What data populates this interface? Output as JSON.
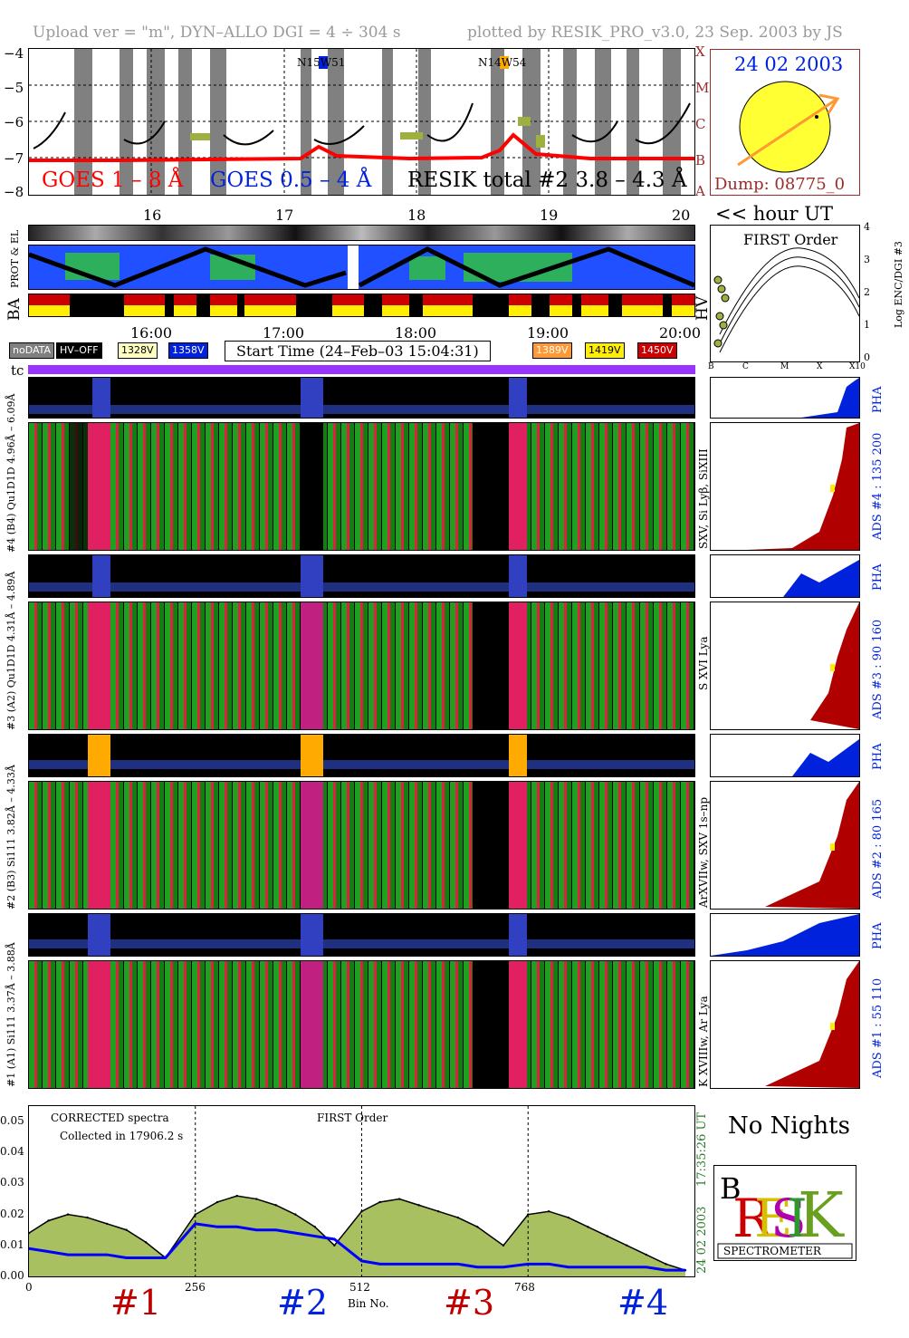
{
  "header": {
    "left": "Upload ver = \"m\", DYN–ALLO DGI =   4 ÷ 304 s",
    "right": "plotted by RESIK_PRO_v3.0, 23 Sep. 2003 by JS"
  },
  "goes": {
    "yticks": [
      "−4",
      "−5",
      "−6",
      "−7",
      "−8"
    ],
    "class_letters": [
      "X",
      "M",
      "C",
      "B",
      "A"
    ],
    "label_long": "GOES 1 – 8 Å",
    "label_short": "GOES 0.5 – 4 Å",
    "label_resik": "RESIK total #2  3.8 – 4.3 Å",
    "ar1": "N15W51",
    "ar2": "N14W54",
    "hour_ticks": [
      "16",
      "17",
      "18",
      "19",
      "20"
    ],
    "hour_label": "<< hour UT"
  },
  "sun": {
    "date": "24 02 2003",
    "dump": "Dump: 08775_0"
  },
  "orbit": {
    "label_prot": "PROT & EL",
    "label_ba": "BA",
    "label_hv": "HV",
    "time_ticks": [
      "16:00",
      "17:00",
      "18:00",
      "19:00",
      "20:00"
    ]
  },
  "legend": {
    "nodata": "noDATA",
    "hvoff": "HV–OFF",
    "v1": "1328V",
    "v2": "1358V",
    "start": "Start Time (24–Feb–03 15:04:31)",
    "v3": "1389V",
    "v4": "1419V",
    "v5": "1450V",
    "colors": {
      "nodata": "#808080",
      "hvoff": "#000000",
      "v1": "#ffffc0",
      "v2": "#0000ff",
      "v3": "#ff9933",
      "v4": "#ffff33",
      "v5": "#cc0000"
    }
  },
  "first_order": {
    "title": "FIRST Order",
    "ylabel": "Log ENC/DGI #3",
    "yticks": [
      "4",
      "3",
      "2",
      "1",
      "0"
    ],
    "xticks": [
      "B",
      "C",
      "M",
      "X",
      "X10"
    ]
  },
  "tc_label": "tc",
  "channels": [
    {
      "pha_label": "#4 (B4) Qu1D1D 4.96Å – 6.09Å",
      "lines": "SXV, Si Lyβ, SiXIII",
      "ads": "ADS #4 :   135 200",
      "pha": "PHA"
    },
    {
      "pha_label": "#3 (A2) Qu1D1D 4.31Å – 4.89Å",
      "lines": "S XVI Lya",
      "ads": "ADS #3 :    90 160",
      "pha": "PHA"
    },
    {
      "pha_label": "#2 (B3) Si111 3.82Å – 4.33Å",
      "lines": "ArXVIIw, SXV 1s–np",
      "ads": "ADS #2 :    80 165",
      "pha": "PHA"
    },
    {
      "pha_label": "#1 (A1) Si111 3.37Å – 3.88Å",
      "lines": "K XVIIIw, Ar Lya",
      "ads": "ADS #1 :    55 110",
      "pha": "PHA"
    }
  ],
  "spectrum": {
    "text1": "CORRECTED spectra",
    "text2": "Collected in 17906.2 s",
    "text3": "FIRST Order",
    "side_date": "24 02 2003",
    "side_time": "17:35:26 UT",
    "xlabel": "Bin No.",
    "channel_marks": [
      "#1",
      "#2",
      "#3",
      "#4"
    ]
  },
  "chart_data": {
    "type": "line",
    "title": "",
    "xlabel": "Bin No.",
    "ylabel": "",
    "xlim": [
      0,
      1024
    ],
    "ylim": [
      0,
      0.055
    ],
    "xticks": [
      0,
      256,
      512,
      768
    ],
    "yticks": [
      0.0,
      0.01,
      0.02,
      0.03,
      0.04,
      0.05
    ],
    "ytick_labels": [
      "0.00",
      "0.01",
      "0.02",
      "0.03",
      "0.04",
      "0.05"
    ],
    "series": [
      {
        "name": "",
        "color": "#000000",
        "x": [
          0,
          30,
          60,
          90,
          120,
          150,
          180,
          210,
          256,
          290,
          320,
          350,
          380,
          410,
          440,
          470,
          512,
          540,
          570,
          600,
          630,
          660,
          690,
          730,
          768,
          800,
          830,
          860,
          890,
          920,
          950,
          980,
          1010
        ],
        "y": [
          0.014,
          0.018,
          0.02,
          0.019,
          0.017,
          0.015,
          0.011,
          0.006,
          0.02,
          0.024,
          0.026,
          0.025,
          0.023,
          0.02,
          0.016,
          0.01,
          0.021,
          0.024,
          0.025,
          0.023,
          0.021,
          0.019,
          0.016,
          0.01,
          0.02,
          0.021,
          0.019,
          0.016,
          0.013,
          0.01,
          0.007,
          0.004,
          0.002
        ]
      },
      {
        "name": "",
        "color": "#0000ff",
        "x": [
          0,
          30,
          60,
          90,
          120,
          150,
          180,
          210,
          256,
          290,
          320,
          350,
          380,
          410,
          440,
          470,
          512,
          540,
          570,
          600,
          630,
          660,
          690,
          730,
          768,
          800,
          830,
          860,
          890,
          920,
          950,
          980,
          1010
        ],
        "y": [
          0.009,
          0.008,
          0.007,
          0.007,
          0.007,
          0.006,
          0.006,
          0.006,
          0.017,
          0.016,
          0.016,
          0.015,
          0.015,
          0.014,
          0.013,
          0.012,
          0.005,
          0.004,
          0.004,
          0.004,
          0.004,
          0.004,
          0.003,
          0.003,
          0.004,
          0.004,
          0.003,
          0.003,
          0.003,
          0.003,
          0.003,
          0.002,
          0.002
        ]
      }
    ]
  }
}
